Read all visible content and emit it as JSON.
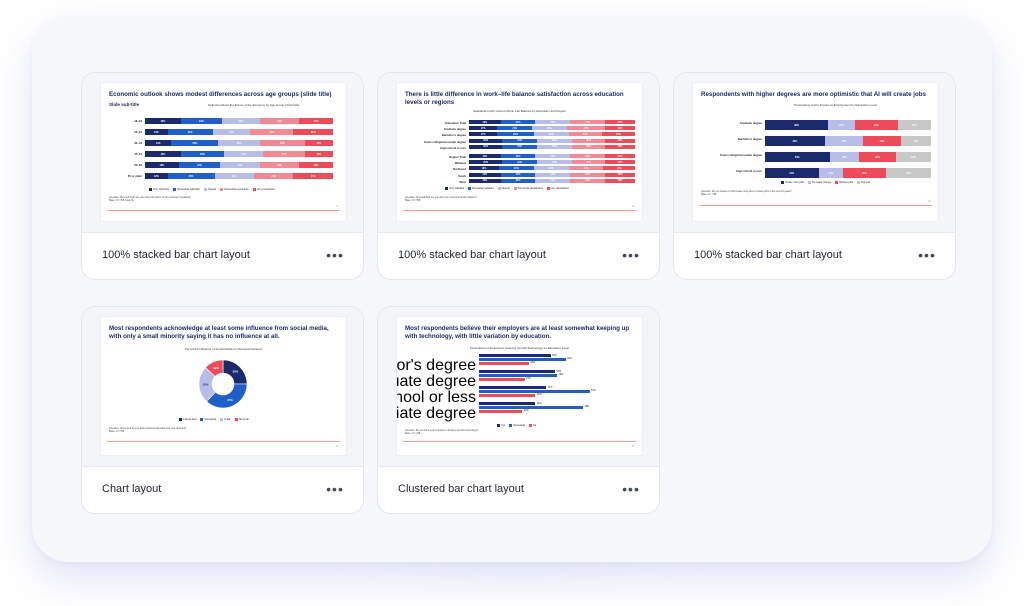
{
  "colors": {
    "navy": "#1a2a6c",
    "blue": "#1f5fc9",
    "lavender": "#b7bde6",
    "pink": "#f28a95",
    "red": "#ee4b5a",
    "gray": "#c8c8c8"
  },
  "cards": [
    {
      "label": "100% stacked bar chart layout",
      "more": "•••",
      "slide": {
        "title": "Economic outlook shows modest differences across age groups (slide title)",
        "subtitle": "Slide sub-title",
        "chart_title": "Optimism About the Future of the Economy by Age Group (chart title)",
        "legend": [
          "Very optimistic",
          "Somewhat optimistic",
          "Neutral",
          "Somewhat pessimistic",
          "Very pessimistic"
        ],
        "footnote": "Question: How optimistic are you about the future of the economy? (question)\nBase: N = 798 (total N)",
        "page": "1"
      }
    },
    {
      "label": "100% stacked bar chart layout",
      "more": "•••",
      "slide": {
        "title": "There is little difference in work–life balance satisfaction across education levels or regions",
        "chart_title": "Satisfaction with Current Work–Life Balance by Education and Region",
        "legend": [
          "Very satisfied",
          "Somewhat satisfied",
          "Neutral",
          "Somewhat dissatisfied",
          "Very dissatisfied"
        ],
        "footnote": "Question: How satisfied are you with your current work-life balance?\nBase: N = 798",
        "page": "2"
      }
    },
    {
      "label": "100% stacked bar chart layout",
      "more": "•••",
      "slide": {
        "title": "Respondents with higher degrees are more optimistic that AI will create jobs",
        "chart_title": "Perceptions of AI's Impact on Employment by Education Level",
        "legend": [
          "Create more jobs",
          "No major change",
          "Reduce jobs",
          "Not sure"
        ],
        "footnote": "Question: Do you believe AI will create more jobs or reduce jobs in the next 10 years?\nBase: N = 798",
        "page": "3"
      }
    },
    {
      "label": "Chart layout",
      "more": "•••",
      "slide": {
        "title": "Most respondents acknowledge at least some influence from social media, with only a small minority saying it has no influence at all.",
        "chart_title": "Perceived Influence of Social Media on Personal Opinions",
        "legend": [
          "A great deal",
          "Somewhat",
          "A little",
          "Not at all"
        ],
        "footnote": "Question: How much do you think social media influences your opinions?\nBase: N = 798",
        "page": "4"
      }
    },
    {
      "label": "Clustered bar chart layout",
      "more": "•••",
      "slide": {
        "title": "Most respondents believe their employers are at least somewhat keeping up with technology, with little variation by education.",
        "chart_title": "Perceptions of Employers Keeping Up with Technology by Education Level",
        "legend": [
          "Yes",
          "Somewhat",
          "No"
        ],
        "footnote": "Question: Do you think your employer is keeping up with technology?\nBase: N = 798",
        "page": "5"
      }
    }
  ],
  "chart_data": [
    {
      "type": "bar",
      "stacked": "100%",
      "categories": [
        "18–24",
        "25–34",
        "35–44",
        "45–54",
        "55–64",
        "65 or older"
      ],
      "series": [
        {
          "name": "Very optimistic",
          "values": [
            19,
            12,
            14,
            19,
            18,
            12
          ]
        },
        {
          "name": "Somewhat optimistic",
          "values": [
            22,
            24,
            25,
            23,
            22,
            25
          ]
        },
        {
          "name": "Neutral",
          "values": [
            20,
            20,
            22,
            21,
            21,
            21
          ]
        },
        {
          "name": "Somewhat pessimistic",
          "values": [
            21,
            23,
            24,
            22,
            21,
            21
          ]
        },
        {
          "name": "Very pessimistic",
          "values": [
            18,
            21,
            15,
            15,
            18,
            21
          ]
        }
      ]
    },
    {
      "type": "bar",
      "stacked": "100%",
      "categories": [
        "Education Total",
        "Graduate degree",
        "Bachelor's degree",
        "Some college/Associate degree",
        "High school or less",
        "Region Total",
        "Midwest",
        "Northeast",
        "South",
        "West"
      ],
      "series": [
        {
          "name": "Very satisfied",
          "values": [
            19,
            17,
            17,
            20,
            20,
            19,
            20,
            18,
            19,
            19
          ]
        },
        {
          "name": "Somewhat satisfied",
          "values": [
            21,
            21,
            22,
            21,
            21,
            21,
            21,
            21,
            21,
            21
          ]
        },
        {
          "name": "Neutral",
          "values": [
            21,
            21,
            21,
            21,
            21,
            21,
            21,
            21,
            21,
            21
          ]
        },
        {
          "name": "Somewhat dissatisfied",
          "values": [
            21,
            23,
            20,
            20,
            20,
            21,
            20,
            21,
            21,
            21
          ]
        },
        {
          "name": "Very dissatisfied",
          "values": [
            18,
            18,
            20,
            18,
            18,
            18,
            18,
            19,
            18,
            18
          ]
        }
      ]
    },
    {
      "type": "bar",
      "stacked": "100%",
      "categories": [
        "Graduate degree",
        "Bachelor's degree",
        "Some college/Associate degree",
        "High school or less"
      ],
      "series": [
        {
          "name": "Create more jobs",
          "values": [
            38,
            36,
            35,
            31
          ]
        },
        {
          "name": "No major change",
          "values": [
            16,
            23,
            16,
            14
          ]
        },
        {
          "name": "Reduce jobs",
          "values": [
            26,
            23,
            20,
            25
          ]
        },
        {
          "name": "Not sure",
          "values": [
            20,
            18,
            19,
            26
          ]
        }
      ]
    },
    {
      "type": "pie",
      "categories": [
        "A great deal",
        "Somewhat",
        "A little",
        "Not at all"
      ],
      "values": [
        25,
        37,
        25,
        13
      ]
    },
    {
      "type": "bar",
      "orientation": "horizontal",
      "categories": [
        "Bachelor's degree",
        "Graduate degree",
        "High school or less",
        "Some college/Associate degree"
      ],
      "series": [
        {
          "name": "Yes",
          "values": [
            33,
            35,
            31,
            26
          ]
        },
        {
          "name": "Somewhat",
          "values": [
            40,
            36,
            51,
            48
          ]
        },
        {
          "name": "No",
          "values": [
            23,
            21,
            26,
            20
          ]
        }
      ]
    }
  ]
}
